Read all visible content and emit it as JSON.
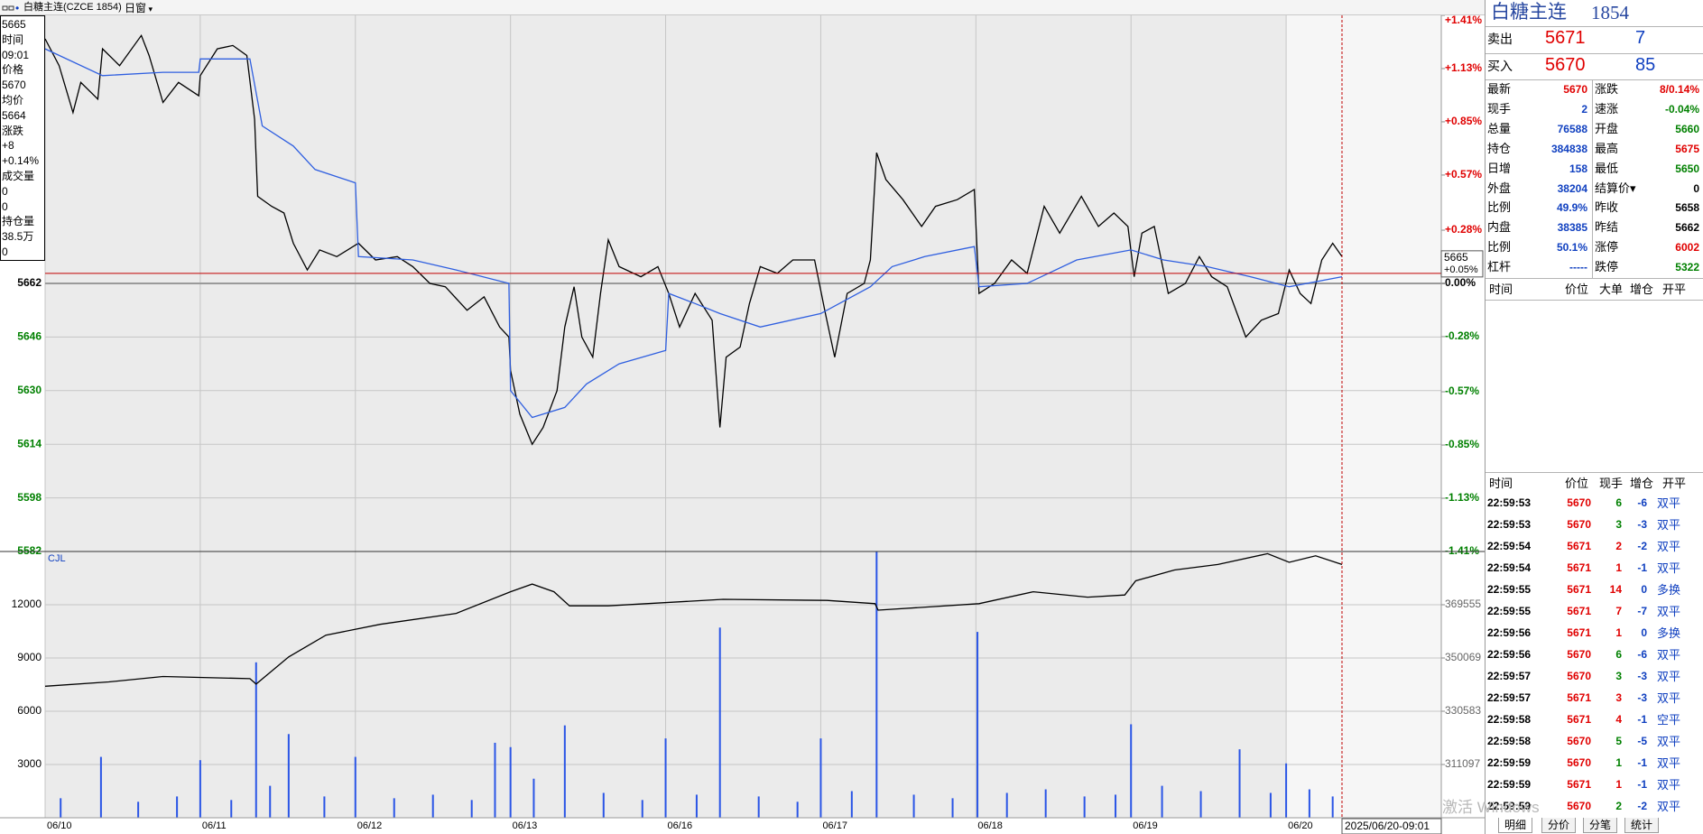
{
  "toolbar": {
    "symbol": "白糖主连(CZCE 1854)",
    "window": "日窗"
  },
  "info_box": {
    "items": [
      "5665",
      "时间",
      "09:01",
      "价格",
      "5670",
      "均价",
      "5664",
      "涨跌",
      "+8",
      "+0.14%",
      "成交量",
      "0",
      "0",
      "持仓量",
      "38.5万",
      "0"
    ]
  },
  "chart_data": [
    {
      "type": "line",
      "xlim": [
        0,
        9
      ],
      "xticks": [
        {
          "value": 0,
          "label": "06/10"
        },
        {
          "value": 1,
          "label": "06/11"
        },
        {
          "value": 2,
          "label": "06/12"
        },
        {
          "value": 3,
          "label": "06/13"
        },
        {
          "value": 4,
          "label": "06/16"
        },
        {
          "value": 5,
          "label": "06/17"
        },
        {
          "value": 6,
          "label": "06/18"
        },
        {
          "value": 7,
          "label": "06/19"
        },
        {
          "value": 8,
          "label": "06/20"
        }
      ],
      "ylim": [
        5582,
        5742
      ],
      "yticks": [
        5662,
        5646,
        5630,
        5614,
        5598,
        5582
      ],
      "y2lim": [
        -1.41,
        1.41
      ],
      "y2ticks": [
        {
          "value": 1.41,
          "label": "+1.41%"
        },
        {
          "value": 1.13,
          "label": "+1.13%"
        },
        {
          "value": 0.85,
          "label": "+0.85%"
        },
        {
          "value": 0.57,
          "label": "+0.57%"
        },
        {
          "value": 0.28,
          "label": "+0.28%"
        },
        {
          "value": 0,
          "label": "0.00%"
        },
        {
          "value": -0.28,
          "label": "-0.28%"
        },
        {
          "value": -0.57,
          "label": "-0.57%"
        },
        {
          "value": -0.85,
          "label": "-0.85%"
        },
        {
          "value": -1.13,
          "label": "-1.13%"
        },
        {
          "value": -1.41,
          "label": "-1.41%"
        }
      ],
      "grid": true,
      "series": [
        {
          "color": "#000000",
          "x": [
            0,
            0.09,
            0.18,
            0.23,
            0.34,
            0.37,
            0.48,
            0.62,
            0.67,
            0.76,
            0.86,
            0.99,
            1.0,
            1.11,
            1.21,
            1.3,
            1.35,
            1.37,
            1.46,
            1.54,
            1.6,
            1.69,
            1.77,
            1.88,
            2.02,
            2.13,
            2.27,
            2.37,
            2.48,
            2.58,
            2.72,
            2.83,
            2.93,
            2.99,
            3.0,
            3.06,
            3.14,
            3.21,
            3.3,
            3.35,
            3.41,
            3.46,
            3.53,
            3.58,
            3.63,
            3.7,
            3.84,
            3.95,
            4.02,
            4.09,
            4.19,
            4.3,
            4.35,
            4.39,
            4.48,
            4.54,
            4.61,
            4.72,
            4.82,
            4.96,
            5.03,
            5.09,
            5.17,
            5.28,
            5.32,
            5.36,
            5.42,
            5.53,
            5.65,
            5.74,
            5.88,
            5.99,
            6.02,
            6.12,
            6.23,
            6.33,
            6.44,
            6.54,
            6.68,
            6.79,
            6.89,
            6.98,
            7.02,
            7.07,
            7.15,
            7.24,
            7.35,
            7.44,
            7.52,
            7.62,
            7.74,
            7.84,
            7.95,
            8.02,
            8.09,
            8.16,
            8.23,
            8.3,
            8.36
          ],
          "values": [
            5735,
            5727,
            5713,
            5722,
            5717,
            5732,
            5727,
            5736,
            5730,
            5716,
            5722,
            5718,
            5724,
            5732,
            5733,
            5730,
            5711,
            5688,
            5685,
            5683,
            5674,
            5666,
            5672,
            5670,
            5674,
            5669,
            5670,
            5667,
            5662,
            5661,
            5654,
            5658,
            5649,
            5646,
            5636,
            5623,
            5614,
            5619,
            5630,
            5649,
            5661,
            5646,
            5640,
            5659,
            5675,
            5667,
            5664,
            5667,
            5659,
            5649,
            5659,
            5651,
            5619,
            5640,
            5643,
            5656,
            5667,
            5665,
            5669,
            5669,
            5653,
            5640,
            5659,
            5662,
            5669,
            5701,
            5693,
            5687,
            5679,
            5685,
            5687,
            5690,
            5659,
            5662,
            5669,
            5665,
            5685,
            5677,
            5688,
            5679,
            5683,
            5679,
            5664,
            5677,
            5679,
            5659,
            5662,
            5670,
            5664,
            5661,
            5646,
            5651,
            5653,
            5666,
            5659,
            5656,
            5669,
            5674,
            5670
          ]
        },
        {
          "color": "#2f5fe0",
          "x": [
            0,
            0.37,
            0.76,
            0.99,
            1.0,
            1.32,
            1.4,
            1.6,
            1.74,
            2.0,
            2.02,
            2.37,
            2.65,
            2.99,
            3.0,
            3.14,
            3.35,
            3.49,
            3.7,
            4.0,
            4.02,
            4.19,
            4.35,
            4.61,
            5.0,
            5.32,
            5.46,
            5.67,
            5.99,
            6.02,
            6.33,
            6.65,
            7.0,
            7.21,
            7.49,
            7.77,
            8.02,
            8.36
          ],
          "values": [
            5732,
            5724,
            5725,
            5725,
            5729,
            5729,
            5709,
            5703,
            5696,
            5692,
            5670,
            5669,
            5666,
            5662,
            5630,
            5622,
            5625,
            5632,
            5638,
            5642,
            5659,
            5656,
            5653,
            5649,
            5653,
            5661,
            5667,
            5670,
            5673,
            5661,
            5662,
            5669,
            5672,
            5669,
            5667,
            5664,
            5661,
            5664
          ]
        }
      ],
      "cursor": {
        "x": 8.36,
        "x_label": "2025/06/20-09:01",
        "y": 5665,
        "y_change": {
          "value": 0.05,
          "label": "+0.05%"
        }
      }
    },
    {
      "type": "bar",
      "title": "CJL",
      "xlim": [
        0,
        9
      ],
      "ylim": [
        0,
        15000
      ],
      "yticks": [
        12000,
        9000,
        6000,
        3000
      ],
      "y2lim": [
        291611,
        389041
      ],
      "y2ticks": [
        369555,
        350069,
        330583,
        311097
      ],
      "grid": true,
      "series": [
        {
          "color": "#2a55e6",
          "x": [
            0.1,
            0.36,
            0.6,
            0.85,
            1.0,
            1.2,
            1.36,
            1.45,
            1.57,
            1.8,
            2.0,
            2.25,
            2.5,
            2.75,
            2.9,
            3.0,
            3.15,
            3.35,
            3.6,
            3.85,
            4.0,
            4.2,
            4.35,
            4.6,
            4.85,
            5.0,
            5.2,
            5.36,
            5.6,
            5.85,
            6.01,
            6.2,
            6.45,
            6.7,
            6.9,
            7.0,
            7.2,
            7.45,
            7.7,
            7.9,
            8.0,
            8.15,
            8.3
          ],
          "values": [
            1100,
            3429,
            900,
            1200,
            3245,
            1000,
            8755,
            1800,
            4714,
            1200,
            3429,
            1100,
            1300,
            1000,
            4224,
            3979,
            2200,
            5204,
            1400,
            1000,
            4469,
            1300,
            10714,
            1200,
            900,
            4469,
            1500,
            15000,
            1300,
            1100,
            10469,
            1400,
            1600,
            1200,
            1300,
            5265,
            1800,
            1500,
            3857,
            1400,
            3061,
            1600,
            1200
          ]
        },
        {
          "type": "line",
          "axis": "y2",
          "color": "#000000",
          "x": [
            0,
            0.41,
            0.76,
            1.32,
            1.36,
            1.57,
            1.81,
            2.16,
            2.65,
            3.0,
            3.14,
            3.28,
            3.38,
            3.63,
            4.37,
            5.04,
            5.35,
            5.37,
            6.02,
            6.37,
            6.72,
            6.96,
            7.03,
            7.28,
            7.56,
            7.88,
            8.02,
            8.19,
            8.36
          ],
          "values": [
            339729,
            341320,
            343308,
            342513,
            340525,
            350467,
            358420,
            362397,
            366373,
            374327,
            377110,
            374327,
            369157,
            369157,
            371543,
            371145,
            369952,
            367566,
            369952,
            374327,
            372339,
            373134,
            378304,
            382281,
            384269,
            388246,
            385065,
            387451,
            384269
          ]
        }
      ]
    }
  ],
  "quote_panel": {
    "name": "白糖主连",
    "code": "1854",
    "sell": {
      "label": "卖出",
      "price": "5671",
      "volume": "7"
    },
    "buy": {
      "label": "买入",
      "price": "5670",
      "volume": "85"
    },
    "stats_left": [
      {
        "label": "最新",
        "value": "5670",
        "color": "#e00000"
      },
      {
        "label": "现手",
        "value": "2",
        "color": "#1040c0"
      },
      {
        "label": "总量",
        "value": "76588",
        "color": "#1040c0"
      },
      {
        "label": "持仓",
        "value": "384838",
        "color": "#1040c0"
      },
      {
        "label": "日增",
        "value": "158",
        "color": "#1040c0"
      },
      {
        "label": "外盘",
        "value": "38204",
        "color": "#1040c0"
      },
      {
        "label": "比例",
        "value": "49.9%",
        "color": "#1040c0"
      },
      {
        "label": "内盘",
        "value": "38385",
        "color": "#1040c0"
      },
      {
        "label": "比例",
        "value": "50.1%",
        "color": "#1040c0"
      },
      {
        "label": "杠杆",
        "value": "-----",
        "color": "#1040c0"
      }
    ],
    "stats_right": [
      {
        "label": "涨跌",
        "value": "8/0.14%",
        "color": "#e00000"
      },
      {
        "label": "速涨",
        "value": "-0.04%",
        "color": "#008000"
      },
      {
        "label": "开盘",
        "value": "5660",
        "color": "#008000"
      },
      {
        "label": "最高",
        "value": "5675",
        "color": "#e00000"
      },
      {
        "label": "最低",
        "value": "5650",
        "color": "#008000"
      },
      {
        "label": "结算价▾",
        "value": "0",
        "color": "#000000"
      },
      {
        "label": "昨收",
        "value": "5658",
        "color": "#000000"
      },
      {
        "label": "昨结",
        "value": "5662",
        "color": "#000000"
      },
      {
        "label": "涨停",
        "value": "6002",
        "color": "#e00000"
      },
      {
        "label": "跌停",
        "value": "5322",
        "color": "#008000"
      }
    ]
  },
  "big_orders": {
    "header": [
      "时间",
      "价位",
      "大单",
      "增仓",
      "开平"
    ]
  },
  "ticks_panel": {
    "header": [
      "时间",
      "价位",
      "现手",
      "增仓",
      "开平"
    ],
    "rows": [
      [
        "22:59:53",
        "5670",
        "6",
        "-6",
        "双平"
      ],
      [
        "22:59:53",
        "5670",
        "3",
        "-3",
        "双平"
      ],
      [
        "22:59:54",
        "5671",
        "2",
        "-2",
        "双平"
      ],
      [
        "22:59:54",
        "5671",
        "1",
        "-1",
        "双平"
      ],
      [
        "22:59:55",
        "5671",
        "14",
        "0",
        "多换"
      ],
      [
        "22:59:55",
        "5671",
        "7",
        "-7",
        "双平"
      ],
      [
        "22:59:56",
        "5671",
        "1",
        "0",
        "多换"
      ],
      [
        "22:59:56",
        "5670",
        "6",
        "-6",
        "双平"
      ],
      [
        "22:59:57",
        "5670",
        "3",
        "-3",
        "双平"
      ],
      [
        "22:59:57",
        "5671",
        "3",
        "-3",
        "双平"
      ],
      [
        "22:59:58",
        "5671",
        "4",
        "-1",
        "空平"
      ],
      [
        "22:59:58",
        "5670",
        "5",
        "-5",
        "双平"
      ],
      [
        "22:59:59",
        "5670",
        "1",
        "-1",
        "双平"
      ],
      [
        "22:59:59",
        "5671",
        "1",
        "-1",
        "双平"
      ],
      [
        "22:59:59",
        "5670",
        "2",
        "-2",
        "双平"
      ]
    ]
  },
  "tabs": [
    "明细",
    "分价",
    "分笔",
    "统计"
  ],
  "watermark": "激活 Windows"
}
